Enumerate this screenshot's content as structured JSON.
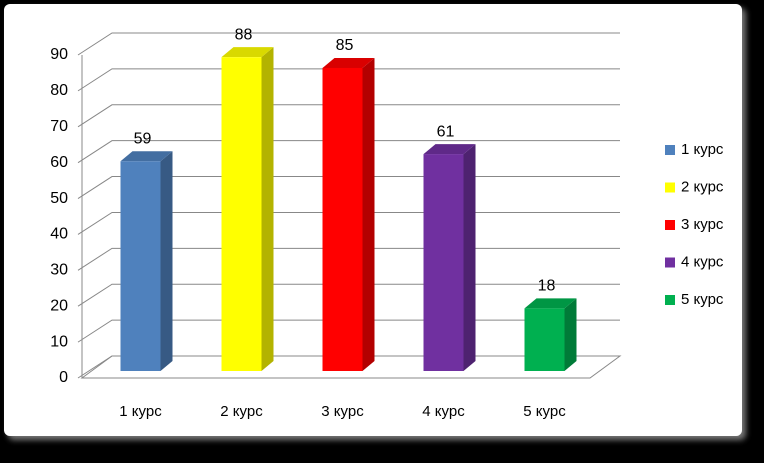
{
  "chart_data": {
    "type": "bar3d",
    "categories": [
      "1 курс",
      "2 курс",
      "3 курс",
      "4 курс",
      "5 курс"
    ],
    "values": [
      59,
      88,
      85,
      61,
      18
    ],
    "colors": [
      "#4f81bd",
      "#ffff00",
      "#ff0000",
      "#7030a0",
      "#00b050"
    ],
    "ylim": [
      0,
      90
    ],
    "yticks": [
      0,
      10,
      20,
      30,
      40,
      50,
      60,
      70,
      80,
      90
    ],
    "grid": true,
    "legend": "right"
  }
}
